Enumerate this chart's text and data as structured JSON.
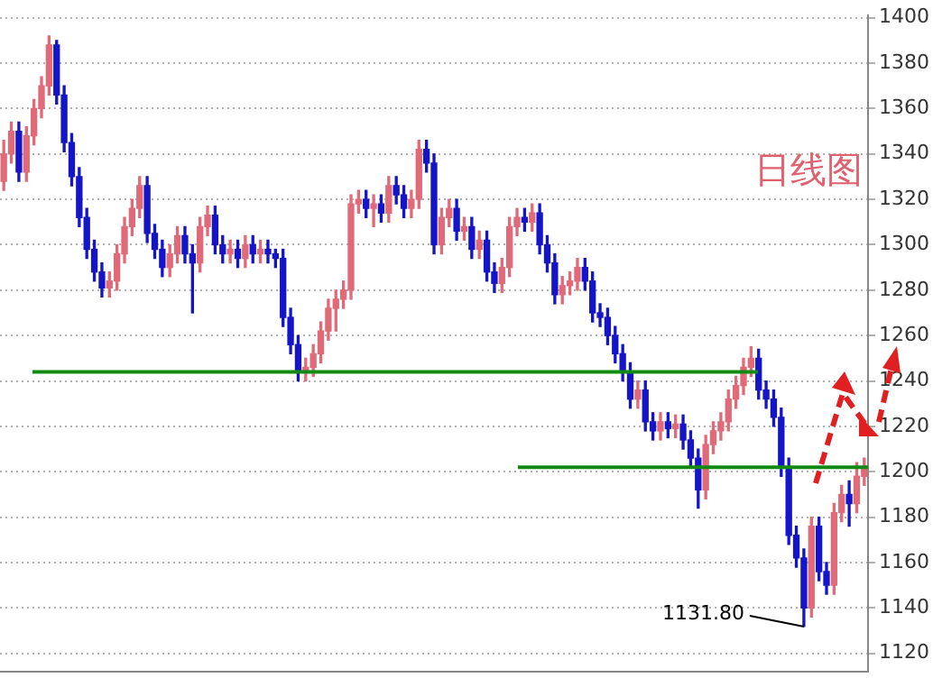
{
  "chart_data": {
    "type": "candlestick",
    "categories": [
      null,
      null,
      null,
      null,
      null,
      null,
      null,
      null,
      null,
      null,
      null,
      null,
      null,
      null,
      null,
      null,
      null,
      null,
      null,
      null,
      null,
      null,
      null,
      null,
      null,
      null,
      null,
      null,
      null,
      null,
      null,
      null,
      null,
      null,
      null,
      null,
      null,
      null,
      null,
      null,
      null,
      null,
      null,
      null,
      null,
      null,
      null,
      null,
      null,
      null,
      null,
      null,
      null,
      null,
      null,
      null,
      null,
      null,
      null,
      null,
      null,
      null,
      null,
      null,
      null,
      null,
      null,
      null,
      null,
      null,
      null,
      null,
      null,
      null,
      null,
      null,
      null,
      null,
      null,
      null,
      null,
      null,
      null,
      null,
      null,
      null,
      null,
      null,
      null,
      null,
      null,
      null,
      null,
      null,
      null,
      null,
      null,
      null,
      null,
      null,
      null,
      null,
      null,
      null,
      null,
      null,
      null,
      null,
      null,
      null,
      null,
      null,
      null,
      null,
      null
    ],
    "ohlc": [
      [
        1328,
        1346,
        1324,
        1340
      ],
      [
        1340,
        1354,
        1336,
        1350
      ],
      [
        1350,
        1354,
        1328,
        1332
      ],
      [
        1332,
        1352,
        1328,
        1348
      ],
      [
        1348,
        1364,
        1344,
        1360
      ],
      [
        1360,
        1374,
        1356,
        1370
      ],
      [
        1370,
        1392,
        1366,
        1388
      ],
      [
        1388,
        1390,
        1362,
        1366
      ],
      [
        1366,
        1370,
        1341,
        1345
      ],
      [
        1345,
        1349,
        1326,
        1330
      ],
      [
        1330,
        1334,
        1308,
        1312
      ],
      [
        1312,
        1316,
        1294,
        1298
      ],
      [
        1298,
        1302,
        1284,
        1288
      ],
      [
        1288,
        1292,
        1277,
        1281
      ],
      [
        1281,
        1288,
        1277,
        1284
      ],
      [
        1284,
        1300,
        1280,
        1296
      ],
      [
        1296,
        1312,
        1292,
        1308
      ],
      [
        1308,
        1320,
        1304,
        1316
      ],
      [
        1316,
        1330,
        1312,
        1326
      ],
      [
        1326,
        1330,
        1301,
        1305
      ],
      [
        1305,
        1309,
        1294,
        1298
      ],
      [
        1298,
        1302,
        1286,
        1290
      ],
      [
        1290,
        1300,
        1286,
        1296
      ],
      [
        1296,
        1308,
        1292,
        1304
      ],
      [
        1304,
        1308,
        1292,
        1296
      ],
      [
        1296,
        1300,
        1270,
        1292
      ],
      [
        1292,
        1312,
        1288,
        1308
      ],
      [
        1308,
        1317,
        1304,
        1313
      ],
      [
        1313,
        1317,
        1296,
        1300
      ],
      [
        1300,
        1304,
        1292,
        1296
      ],
      [
        1296,
        1302,
        1292,
        1298
      ],
      [
        1298,
        1302,
        1290,
        1294
      ],
      [
        1294,
        1304,
        1290,
        1300
      ],
      [
        1300,
        1304,
        1292,
        1296
      ],
      [
        1296,
        1302,
        1292,
        1298
      ],
      [
        1298,
        1302,
        1292,
        1296
      ],
      [
        1296,
        1298,
        1290,
        1294
      ],
      [
        1294,
        1298,
        1264,
        1268
      ],
      [
        1268,
        1272,
        1252,
        1256
      ],
      [
        1256,
        1260,
        1240,
        1244
      ],
      [
        1244,
        1250,
        1240,
        1246
      ],
      [
        1246,
        1256,
        1242,
        1252
      ],
      [
        1252,
        1266,
        1248,
        1262
      ],
      [
        1262,
        1276,
        1258,
        1272
      ],
      [
        1272,
        1280,
        1262,
        1276
      ],
      [
        1276,
        1284,
        1272,
        1280
      ],
      [
        1280,
        1322,
        1276,
        1318
      ],
      [
        1318,
        1324,
        1314,
        1320
      ],
      [
        1320,
        1324,
        1312,
        1316
      ],
      [
        1316,
        1322,
        1308,
        1318
      ],
      [
        1318,
        1322,
        1310,
        1314
      ],
      [
        1314,
        1330,
        1310,
        1326
      ],
      [
        1326,
        1330,
        1318,
        1322
      ],
      [
        1322,
        1326,
        1312,
        1316
      ],
      [
        1316,
        1324,
        1312,
        1320
      ],
      [
        1320,
        1346,
        1316,
        1342
      ],
      [
        1342,
        1346,
        1332,
        1336
      ],
      [
        1336,
        1340,
        1296,
        1300
      ],
      [
        1300,
        1316,
        1296,
        1312
      ],
      [
        1312,
        1320,
        1308,
        1316
      ],
      [
        1316,
        1320,
        1302,
        1306
      ],
      [
        1306,
        1312,
        1302,
        1308
      ],
      [
        1308,
        1312,
        1294,
        1298
      ],
      [
        1298,
        1306,
        1294,
        1302
      ],
      [
        1302,
        1306,
        1284,
        1288
      ],
      [
        1288,
        1292,
        1279,
        1283
      ],
      [
        1283,
        1294,
        1279,
        1290
      ],
      [
        1290,
        1312,
        1286,
        1308
      ],
      [
        1308,
        1316,
        1304,
        1312
      ],
      [
        1312,
        1316,
        1306,
        1310
      ],
      [
        1310,
        1318,
        1306,
        1314
      ],
      [
        1314,
        1318,
        1296,
        1300
      ],
      [
        1300,
        1304,
        1288,
        1292
      ],
      [
        1292,
        1296,
        1274,
        1278
      ],
      [
        1278,
        1286,
        1274,
        1282
      ],
      [
        1282,
        1288,
        1278,
        1284
      ],
      [
        1284,
        1294,
        1280,
        1290
      ],
      [
        1290,
        1294,
        1280,
        1284
      ],
      [
        1284,
        1288,
        1266,
        1270
      ],
      [
        1270,
        1274,
        1264,
        1268
      ],
      [
        1268,
        1272,
        1256,
        1260
      ],
      [
        1260,
        1264,
        1248,
        1252
      ],
      [
        1252,
        1256,
        1240,
        1244
      ],
      [
        1244,
        1248,
        1228,
        1232
      ],
      [
        1232,
        1240,
        1228,
        1236
      ],
      [
        1236,
        1240,
        1218,
        1222
      ],
      [
        1222,
        1226,
        1214,
        1218
      ],
      [
        1218,
        1226,
        1214,
        1222
      ],
      [
        1222,
        1226,
        1215,
        1219
      ],
      [
        1219,
        1225,
        1215,
        1221
      ],
      [
        1221,
        1225,
        1210,
        1214
      ],
      [
        1214,
        1218,
        1202,
        1206
      ],
      [
        1206,
        1210,
        1184,
        1192
      ],
      [
        1192,
        1216,
        1188,
        1212
      ],
      [
        1212,
        1222,
        1208,
        1218
      ],
      [
        1218,
        1226,
        1214,
        1222
      ],
      [
        1222,
        1236,
        1218,
        1232
      ],
      [
        1232,
        1242,
        1228,
        1238
      ],
      [
        1238,
        1250,
        1234,
        1246
      ],
      [
        1246,
        1255,
        1242,
        1250
      ],
      [
        1250,
        1254,
        1232,
        1236
      ],
      [
        1236,
        1240,
        1228,
        1232
      ],
      [
        1232,
        1236,
        1220,
        1224
      ],
      [
        1224,
        1228,
        1198,
        1202
      ],
      [
        1202,
        1206,
        1168,
        1172
      ],
      [
        1172,
        1176,
        1158,
        1162
      ],
      [
        1162,
        1166,
        1131.8,
        1140
      ],
      [
        1140,
        1180,
        1136,
        1176
      ],
      [
        1176,
        1180,
        1152,
        1156
      ],
      [
        1156,
        1160,
        1146,
        1150
      ],
      [
        1150,
        1186,
        1146,
        1182
      ],
      [
        1182,
        1194,
        1178,
        1190
      ],
      [
        1190,
        1196,
        1176,
        1186
      ],
      [
        1186,
        1204,
        1182,
        1198
      ],
      [
        1198,
        1206,
        1194,
        1202
      ]
    ],
    "colors": [
      "#e06a78",
      "#e06a78",
      "#1414c8",
      "#e06a78",
      "#e06a78",
      "#e06a78",
      "#e06a78",
      "#1414c8",
      "#1414c8",
      "#1414c8",
      "#1414c8",
      "#1414c8",
      "#1414c8",
      "#1414c8",
      "#e06a78",
      "#e06a78",
      "#e06a78",
      "#e06a78",
      "#e06a78",
      "#1414c8",
      "#1414c8",
      "#1414c8",
      "#e06a78",
      "#e06a78",
      "#1414c8",
      "#1414c8",
      "#e06a78",
      "#e06a78",
      "#1414c8",
      "#1414c8",
      "#e06a78",
      "#1414c8",
      "#e06a78",
      "#1414c8",
      "#e06a78",
      "#1414c8",
      "#1414c8",
      "#1414c8",
      "#1414c8",
      "#1414c8",
      "#e06a78",
      "#e06a78",
      "#e06a78",
      "#e06a78",
      "#e06a78",
      "#e06a78",
      "#e06a78",
      "#e06a78",
      "#1414c8",
      "#e06a78",
      "#1414c8",
      "#e06a78",
      "#1414c8",
      "#1414c8",
      "#e06a78",
      "#e06a78",
      "#1414c8",
      "#1414c8",
      "#e06a78",
      "#e06a78",
      "#1414c8",
      "#e06a78",
      "#1414c8",
      "#e06a78",
      "#1414c8",
      "#1414c8",
      "#e06a78",
      "#e06a78",
      "#e06a78",
      "#1414c8",
      "#e06a78",
      "#1414c8",
      "#1414c8",
      "#1414c8",
      "#e06a78",
      "#e06a78",
      "#e06a78",
      "#1414c8",
      "#1414c8",
      "#1414c8",
      "#1414c8",
      "#1414c8",
      "#1414c8",
      "#1414c8",
      "#e06a78",
      "#1414c8",
      "#1414c8",
      "#e06a78",
      "#1414c8",
      "#e06a78",
      "#1414c8",
      "#1414c8",
      "#1414c8",
      "#e06a78",
      "#e06a78",
      "#e06a78",
      "#e06a78",
      "#e06a78",
      "#e06a78",
      "#e06a78",
      "#1414c8",
      "#1414c8",
      "#1414c8",
      "#1414c8",
      "#1414c8",
      "#1414c8",
      "#1414c8",
      "#e06a78",
      "#1414c8",
      "#1414c8",
      "#e06a78",
      "#e06a78",
      "#1414c8",
      "#e06a78",
      "#e06a78"
    ],
    "ylim": [
      1112,
      1401
    ],
    "yticks": [
      1120,
      1140,
      1160,
      1180,
      1200,
      1220,
      1240,
      1260,
      1280,
      1300,
      1320,
      1340,
      1360,
      1380,
      1400
    ],
    "grid": "y",
    "tick_labels": "y",
    "ref_lines": [
      {
        "axis": "y",
        "value": 1244,
        "color": "#108a10"
      },
      {
        "axis": "y",
        "value": 1202,
        "color": "#108a10"
      }
    ],
    "annotations": [
      "日线图",
      "1131.80"
    ]
  }
}
